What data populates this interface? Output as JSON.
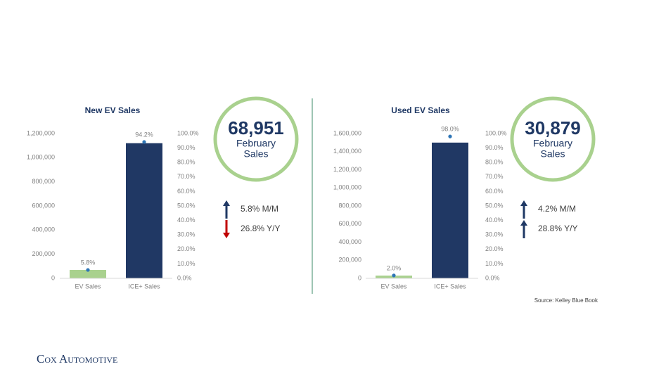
{
  "chart_data": [
    {
      "type": "bar",
      "title": "New EV Sales",
      "categories": [
        "EV Sales",
        "ICE+ Sales"
      ],
      "series": [
        {
          "values": [
            70000,
            1120000
          ],
          "colors": [
            "#a9d18e",
            "#203864"
          ]
        },
        {
          "type": "scatter",
          "axis": "y2",
          "values": [
            5.8,
            94.2
          ],
          "value_labels": [
            "5.8%",
            "94.2%"
          ],
          "color": "#2e75b6"
        }
      ],
      "ylim": [
        0,
        1200000
      ],
      "yticks": [
        0,
        {
          "value": 200000,
          "label": "200,000"
        },
        {
          "value": 400000,
          "label": "400,000"
        },
        {
          "value": 600000,
          "label": "600,000"
        },
        {
          "value": 800000,
          "label": "800,000"
        },
        {
          "value": 1000000,
          "label": "1,000,000"
        },
        {
          "value": 1200000,
          "label": "1,200,000"
        }
      ],
      "y2lim": [
        0,
        100
      ],
      "y2ticks": [
        {
          "value": 0,
          "label": "0.0%"
        },
        {
          "value": 10,
          "label": "10.0%"
        },
        {
          "value": 20,
          "label": "20.0%"
        },
        {
          "value": 30,
          "label": "30.0%"
        },
        {
          "value": 40,
          "label": "40.0%"
        },
        {
          "value": 50,
          "label": "50.0%"
        },
        {
          "value": 60,
          "label": "60.0%"
        },
        {
          "value": 70,
          "label": "70.0%"
        },
        {
          "value": 80,
          "label": "80.0%"
        },
        {
          "value": 90,
          "label": "90.0%"
        },
        {
          "value": 100,
          "label": "100.0%"
        }
      ],
      "grid": false
    },
    {
      "type": "bar",
      "title": "Used EV Sales",
      "categories": [
        "EV Sales",
        "ICE+ Sales"
      ],
      "series": [
        {
          "values": [
            30000,
            1500000
          ],
          "colors": [
            "#a9d18e",
            "#203864"
          ]
        },
        {
          "type": "scatter",
          "axis": "y2",
          "values": [
            2.0,
            98.0
          ],
          "value_labels": [
            "2.0%",
            "98.0%"
          ],
          "color": "#2e75b6"
        }
      ],
      "ylim": [
        0,
        1600000
      ],
      "yticks": [
        0,
        {
          "value": 200000,
          "label": "200,000"
        },
        {
          "value": 400000,
          "label": "400,000"
        },
        {
          "value": 600000,
          "label": "600,000"
        },
        {
          "value": 800000,
          "label": "800,000"
        },
        {
          "value": 1000000,
          "label": "1,000,000"
        },
        {
          "value": 1200000,
          "label": "1,200,000"
        },
        {
          "value": 1400000,
          "label": "1,400,000"
        },
        {
          "value": 1600000,
          "label": "1,600,000"
        }
      ],
      "y2lim": [
        0,
        100
      ],
      "y2ticks": [
        {
          "value": 0,
          "label": "0.0%"
        },
        {
          "value": 10,
          "label": "10.0%"
        },
        {
          "value": 20,
          "label": "20.0%"
        },
        {
          "value": 30,
          "label": "30.0%"
        },
        {
          "value": 40,
          "label": "40.0%"
        },
        {
          "value": 50,
          "label": "50.0%"
        },
        {
          "value": 60,
          "label": "60.0%"
        },
        {
          "value": 70,
          "label": "70.0%"
        },
        {
          "value": 80,
          "label": "80.0%"
        },
        {
          "value": 90,
          "label": "90.0%"
        },
        {
          "value": 100,
          "label": "100.0%"
        }
      ],
      "grid": false
    }
  ],
  "kpis": [
    {
      "value": "68,951",
      "caption": [
        "February",
        "Sales"
      ],
      "changes": [
        {
          "text": "5.8% M/M",
          "direction": "up"
        },
        {
          "text": "26.8% Y/Y",
          "direction": "down"
        }
      ]
    },
    {
      "value": "30,879",
      "caption": [
        "February",
        "Sales"
      ],
      "changes": [
        {
          "text": "4.2% M/M",
          "direction": "up"
        },
        {
          "text": "28.8% Y/Y",
          "direction": "up"
        }
      ]
    }
  ],
  "source": "Source: Kelley Blue Book",
  "logo": "Cox Automotive"
}
